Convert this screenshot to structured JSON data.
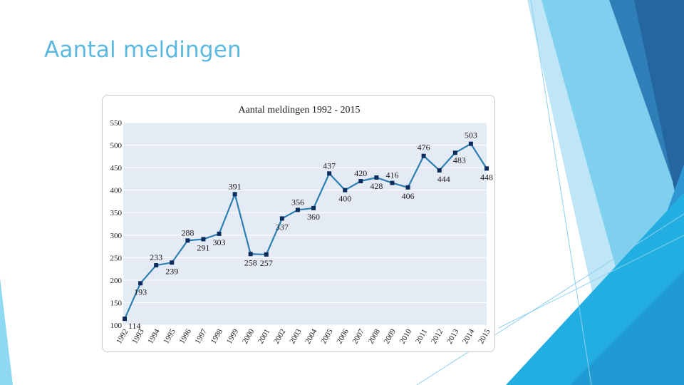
{
  "slide": {
    "title": "Aantal meldingen"
  },
  "colors": {
    "title": "#5bb8de",
    "line": "#2a7fb0",
    "marker": "#0d2c5e",
    "plot_bg": "#e4ebf5",
    "grid": "#ffffff"
  },
  "chart_data": {
    "type": "line",
    "title": "Aantal meldingen 1992 - 2015",
    "xlabel": "",
    "ylabel": "",
    "categories": [
      "1992",
      "1993",
      "1994",
      "1995",
      "1996",
      "1997",
      "1998",
      "1999",
      "2000",
      "2001",
      "2002",
      "2003",
      "2004",
      "2005",
      "2006",
      "2007",
      "2008",
      "2009",
      "2010",
      "2011",
      "2012",
      "2013",
      "2014",
      "2015"
    ],
    "series": [
      {
        "name": "Aantal meldingen",
        "values": [
          114,
          193,
          233,
          239,
          288,
          291,
          303,
          391,
          258,
          257,
          337,
          356,
          360,
          437,
          400,
          420,
          428,
          416,
          406,
          476,
          444,
          483,
          503,
          448
        ]
      }
    ],
    "ylim": [
      100,
      550
    ],
    "yticks": [
      "100",
      "150",
      "200",
      "250",
      "300",
      "350",
      "400",
      "450",
      "500",
      "550"
    ],
    "data_labels": [
      "114",
      "193",
      "233",
      "239",
      "288",
      "291",
      "303",
      "391",
      "258",
      "257",
      "337",
      "356",
      "360",
      "437",
      "400",
      "420",
      "428",
      "416",
      "406",
      "476",
      "444",
      "483",
      "503",
      "448"
    ],
    "grid": true,
    "legend": "none"
  }
}
